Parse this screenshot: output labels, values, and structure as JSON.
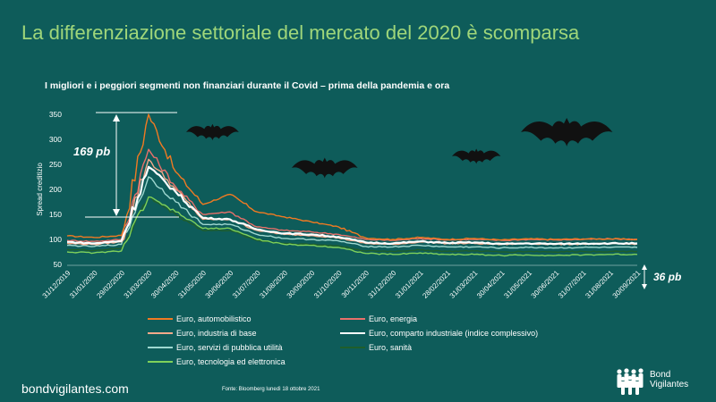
{
  "title": "La differenziazione settoriale del mercato del 2020 è scomparsa",
  "subtitle": "I migliori e i peggiori segmenti non finanziari durante il Covid – prima della pandemia e ora",
  "footer": {
    "site": "bondvigilantes.com",
    "source": "Fonte: Bloomberg lunedì 18 ottobre 2021",
    "logo_line1": "Bond",
    "logo_line2": "Vigilantes"
  },
  "icons": [
    "bat-icon",
    "bat-icon",
    "bat-icon",
    "bat-icon",
    "bat-icon"
  ],
  "chart_data": {
    "type": "line",
    "ylabel": "Spread creditizio",
    "xlabel": "",
    "ylim": [
      50,
      350
    ],
    "yticks": [
      50,
      100,
      150,
      200,
      250,
      300,
      350
    ],
    "xticks": [
      "31/12/2019",
      "31/01/2020",
      "29/02/2020",
      "31/03/2020",
      "30/04/2020",
      "31/05/2020",
      "30/06/2020",
      "31/07/2020",
      "31/08/2020",
      "30/09/2020",
      "31/10/2020",
      "30/11/2020",
      "31/12/2020",
      "31/01/2021",
      "28/02/2021",
      "31/03/2021",
      "30/04/2021",
      "31/05/2021",
      "30/06/2021",
      "31/07/2021",
      "31/08/2021",
      "30/09/2021"
    ],
    "annotations": [
      "169 pb",
      "36 pb"
    ],
    "series": [
      {
        "name": "Euro, automobilistico",
        "color": "#f07a22",
        "values": [
          107,
          104,
          108,
          350,
          235,
          170,
          190,
          155,
          145,
          135,
          125,
          103,
          100,
          104,
          100,
          102,
          99,
          101,
          100,
          101,
          101,
          100
        ]
      },
      {
        "name": "Euro, energia",
        "color": "#e8706a",
        "values": [
          98,
          96,
          100,
          280,
          205,
          150,
          155,
          125,
          118,
          115,
          110,
          100,
          98,
          102,
          99,
          100,
          98,
          100,
          99,
          100,
          101,
          100
        ]
      },
      {
        "name": "Euro, industria di base",
        "color": "#f5a98a",
        "values": [
          92,
          90,
          95,
          260,
          200,
          140,
          140,
          118,
          110,
          108,
          103,
          92,
          90,
          95,
          92,
          92,
          90,
          92,
          90,
          91,
          91,
          91
        ]
      },
      {
        "name": "Euro, comparto industriale (indice complessivo)",
        "color": "#ffffff",
        "values": [
          95,
          92,
          97,
          245,
          195,
          143,
          140,
          120,
          112,
          110,
          105,
          94,
          92,
          96,
          93,
          94,
          91,
          92,
          91,
          92,
          92,
          92
        ]
      },
      {
        "name": "Euro, servizi di pubblica utilità",
        "color": "#9fd8d0",
        "values": [
          88,
          86,
          90,
          225,
          175,
          130,
          130,
          110,
          102,
          100,
          97,
          86,
          85,
          88,
          85,
          85,
          83,
          84,
          83,
          84,
          84,
          84
        ]
      },
      {
        "name": "Euro, sanità",
        "color": "#1f5e2a",
        "values": [
          80,
          78,
          82,
          185,
          150,
          118,
          118,
          98,
          92,
          90,
          87,
          77,
          76,
          79,
          76,
          77,
          75,
          76,
          75,
          76,
          76,
          76
        ]
      },
      {
        "name": "Euro, tecnologia ed elettronica",
        "color": "#7fd15a",
        "values": [
          75,
          73,
          77,
          185,
          155,
          122,
          122,
          100,
          90,
          88,
          84,
          72,
          70,
          73,
          70,
          70,
          68,
          69,
          68,
          69,
          70,
          70
        ]
      }
    ]
  }
}
